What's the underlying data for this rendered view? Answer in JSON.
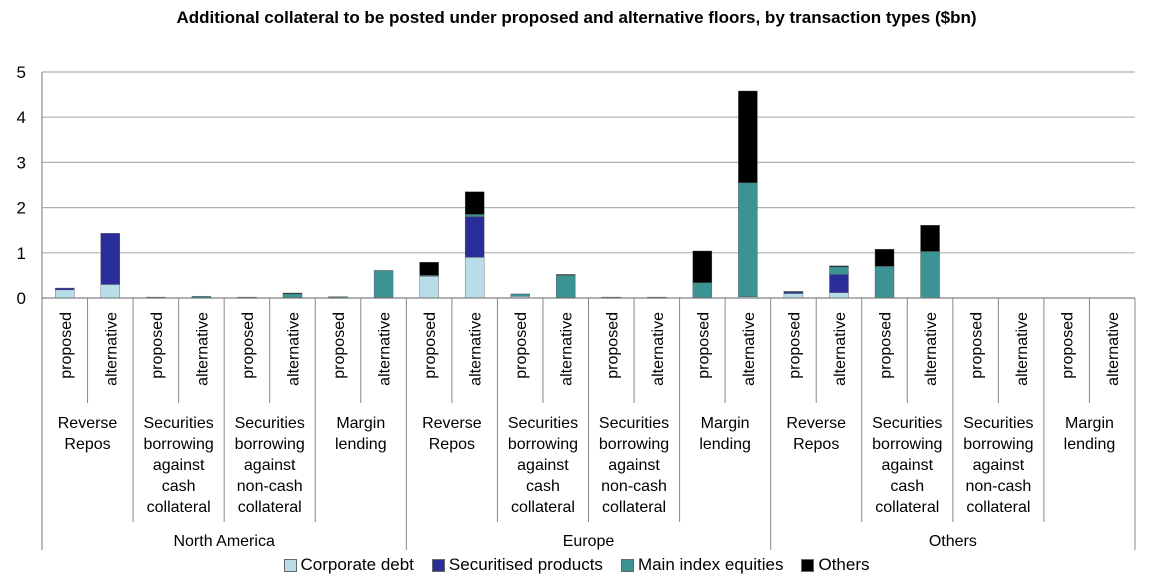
{
  "chart_data": {
    "type": "bar",
    "stacked": true,
    "title": "Additional collateral to be posted under proposed and alternative floors, by transaction types ($bn)",
    "ylim": [
      0,
      5
    ],
    "yticks": [
      "0",
      "1",
      "2",
      "3",
      "4",
      "5"
    ],
    "grid": true,
    "legend_position": "bottom",
    "regions": [
      "North America",
      "Europe",
      "Others"
    ],
    "transaction_types": [
      [
        "Reverse",
        "Repos"
      ],
      [
        "Securities",
        "borrowing",
        "against",
        "cash",
        "collateral"
      ],
      [
        "Securities",
        "borrowing",
        "against",
        "non-cash",
        "collateral"
      ],
      [
        "Margin",
        "lending"
      ]
    ],
    "floors": [
      "proposed",
      "alternative"
    ],
    "series": [
      {
        "name": "Corporate debt",
        "color": "#b7dde8",
        "values": [
          0.18,
          0.3,
          0.01,
          0.01,
          0.01,
          0.01,
          0.01,
          0.01,
          0.48,
          0.9,
          0.04,
          0.01,
          0.01,
          0.01,
          0.01,
          0.03,
          0.1,
          0.12,
          0.0,
          0.0,
          0.0,
          0.0,
          0.0,
          0.0
        ]
      },
      {
        "name": "Securitised products",
        "color": "#2b2d9b",
        "values": [
          0.04,
          1.13,
          0.0,
          0.0,
          0.0,
          0.0,
          0.0,
          0.0,
          0.0,
          0.9,
          0.0,
          0.0,
          0.0,
          0.0,
          0.0,
          0.0,
          0.04,
          0.4,
          0.0,
          0.0,
          0.0,
          0.0,
          0.0,
          0.0
        ]
      },
      {
        "name": "Main index equities",
        "color": "#3b9394",
        "values": [
          0.0,
          0.0,
          0.01,
          0.03,
          0.01,
          0.09,
          0.02,
          0.6,
          0.02,
          0.05,
          0.05,
          0.5,
          0.01,
          0.01,
          0.33,
          2.52,
          0.01,
          0.17,
          0.7,
          1.03,
          0.0,
          0.0,
          0.0,
          0.0
        ]
      },
      {
        "name": "Others",
        "color": "#000000",
        "values": [
          0.0,
          0.0,
          0.0,
          0.0,
          0.0,
          0.01,
          0.0,
          0.0,
          0.29,
          0.5,
          0.0,
          0.01,
          0.0,
          0.0,
          0.7,
          2.03,
          0.0,
          0.02,
          0.38,
          0.58,
          0.0,
          0.0,
          0.0,
          0.0
        ]
      }
    ]
  }
}
